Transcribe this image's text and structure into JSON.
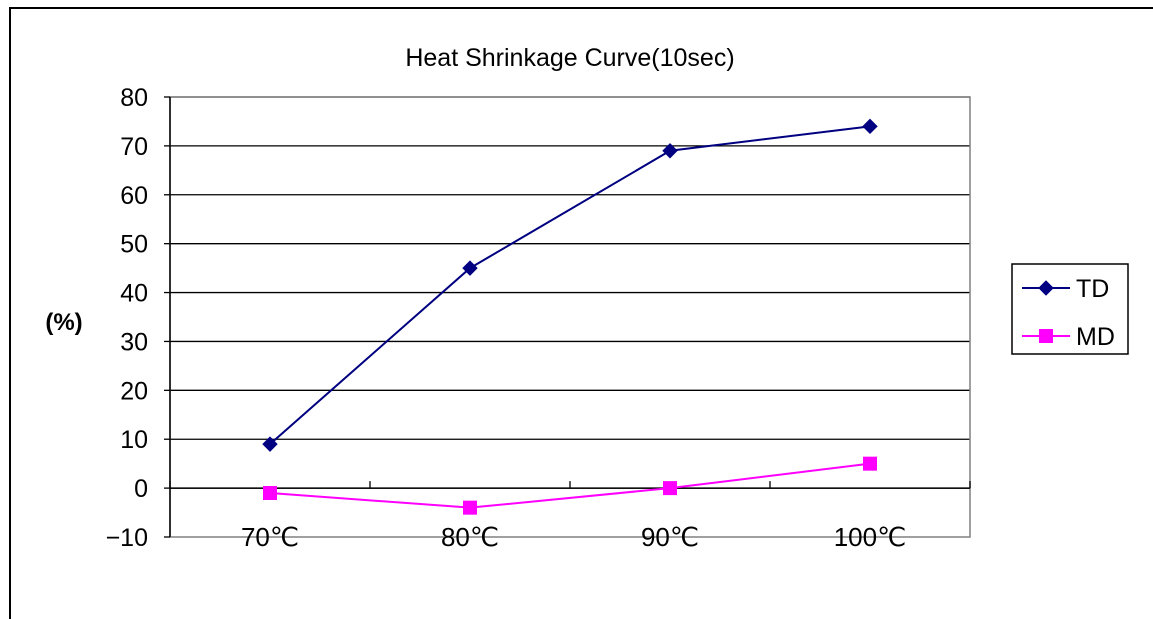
{
  "chart_data": {
    "type": "line",
    "title": "Heat Shrinkage Curve(10sec)",
    "ylabel": "(%)",
    "xlabel": "",
    "categories": [
      "70℃",
      "80℃",
      "90℃",
      "100℃"
    ],
    "ylim": [
      -10,
      80
    ],
    "yticks": [
      -10,
      0,
      10,
      20,
      30,
      40,
      50,
      60,
      70,
      80
    ],
    "grid": true,
    "legend_position": "right",
    "series": [
      {
        "name": "TD",
        "values": [
          9,
          45,
          69,
          74
        ],
        "color": "#000080",
        "marker": "diamond"
      },
      {
        "name": "MD",
        "values": [
          -1,
          -4,
          0,
          5
        ],
        "color": "#FF00FF",
        "marker": "square"
      }
    ]
  }
}
